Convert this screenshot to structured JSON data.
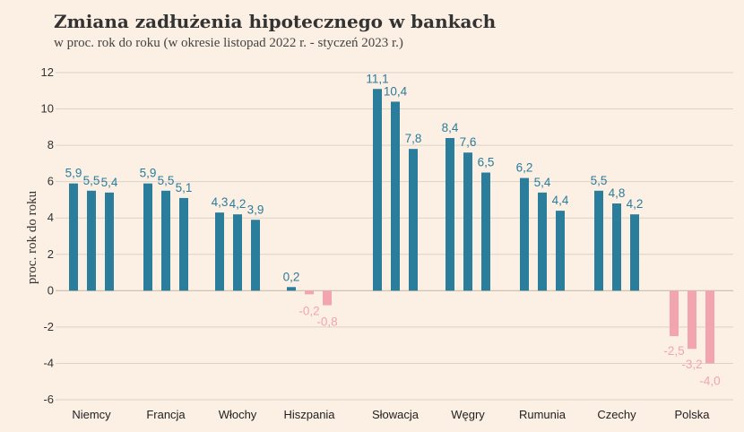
{
  "chart_data": {
    "type": "bar",
    "title": "Zmiana zadłużenia hipotecznego w bankach",
    "subtitle": "w proc. rok do roku (w okresie listopad 2022 r. - styczeń 2023 r.)",
    "xlabel": "",
    "ylabel": "proc. rok do roku",
    "ylim": [
      -6,
      12
    ],
    "yticks": [
      -6,
      -4,
      -2,
      0,
      2,
      4,
      6,
      8,
      10,
      12
    ],
    "grid": true,
    "legend": "none",
    "categories": [
      "Niemcy",
      "Francja",
      "Włochy",
      "Hiszpania",
      "Słowacja",
      "Węgry",
      "Rumunia",
      "Czechy",
      "Polska"
    ],
    "series": [
      {
        "values": [
          5.9,
          5.9,
          4.3,
          0.2,
          11.1,
          8.4,
          6.2,
          5.5,
          -2.5
        ]
      },
      {
        "values": [
          5.5,
          5.5,
          4.2,
          -0.2,
          10.4,
          7.6,
          5.4,
          4.8,
          -3.2
        ]
      },
      {
        "values": [
          5.4,
          5.1,
          3.9,
          -0.8,
          7.8,
          6.5,
          4.4,
          4.2,
          -4.0
        ]
      }
    ],
    "data_labels": [
      [
        "5,9",
        "5,9",
        "4,3",
        "0,2",
        "11,1",
        "8,4",
        "6,2",
        "5,5",
        "-2,5"
      ],
      [
        "5,5",
        "5,5",
        "4,2",
        "-0,2",
        "10,4",
        "7,6",
        "5,4",
        "4,8",
        "-3,2"
      ],
      [
        "5,4",
        "5,1",
        "3,9",
        "-0,8",
        "7,8",
        "6,5",
        "4,4",
        "4,2",
        "-4,0"
      ]
    ],
    "colors": {
      "positive": "#2b7d9c",
      "negative": "#f2a5ae",
      "grid": "#dcd2c8",
      "zero_line": "#c8bdb2"
    }
  }
}
